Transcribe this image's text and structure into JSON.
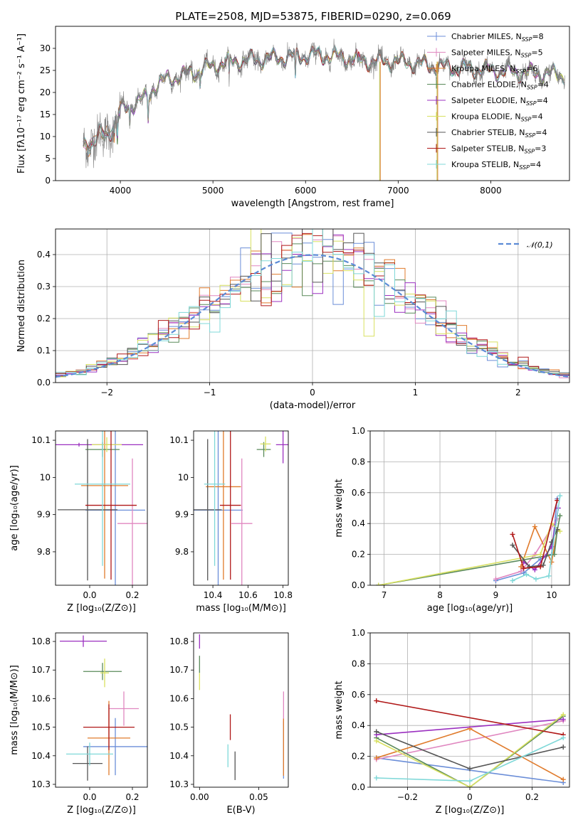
{
  "title": "PLATE=2508, MJD=53875, FIBERID=0290, z=0.069",
  "models": [
    {
      "name": "Chabrier MILES",
      "nssp": "8",
      "color": "#6b8ed8"
    },
    {
      "name": "Salpeter MILES",
      "nssp": "5",
      "color": "#e087c0"
    },
    {
      "name": "Kroupa MILES",
      "nssp": "6",
      "color": "#e07b2c"
    },
    {
      "name": "Chabrier ELODIE",
      "nssp": "4",
      "color": "#5a8a5a"
    },
    {
      "name": "Salpeter ELODIE",
      "nssp": "4",
      "color": "#9b30c0"
    },
    {
      "name": "Kroupa ELODIE",
      "nssp": "4",
      "color": "#d8e060"
    },
    {
      "name": "Chabrier STELIB",
      "nssp": "4",
      "color": "#555555"
    },
    {
      "name": "Salpeter STELIB",
      "nssp": "3",
      "color": "#b01818"
    },
    {
      "name": "Kroupa STELIB",
      "nssp": "4",
      "color": "#7fd8d8"
    }
  ],
  "chart_data": [
    {
      "id": "spectrum",
      "type": "line",
      "xlabel": "wavelength [Angstrom, rest frame]",
      "ylabel": "Flux [fλ10⁻¹⁷ erg cm⁻² s⁻¹ A⁻¹]",
      "xlim": [
        3300,
        8850
      ],
      "ylim": [
        0,
        35
      ],
      "xticks": [
        4000,
        5000,
        6000,
        7000,
        8000
      ],
      "yticks": [
        0,
        5,
        10,
        15,
        20,
        25,
        30
      ],
      "continuum": [
        [
          3600,
          8
        ],
        [
          3700,
          9
        ],
        [
          3800,
          10
        ],
        [
          3900,
          12
        ],
        [
          3950,
          13
        ],
        [
          4000,
          16
        ],
        [
          4100,
          17
        ],
        [
          4200,
          18
        ],
        [
          4300,
          19
        ],
        [
          4350,
          21
        ],
        [
          4500,
          23
        ],
        [
          4700,
          24
        ],
        [
          4850,
          25
        ],
        [
          5000,
          26
        ],
        [
          5200,
          27
        ],
        [
          5500,
          27.5
        ],
        [
          5800,
          28
        ],
        [
          6100,
          28.5
        ],
        [
          6400,
          28
        ],
        [
          6700,
          27
        ],
        [
          7000,
          27
        ],
        [
          7200,
          26.5
        ],
        [
          7400,
          26
        ],
        [
          7700,
          25.5
        ],
        [
          8000,
          25
        ],
        [
          8300,
          24.5
        ],
        [
          8800,
          24
        ]
      ],
      "absorption": [
        [
          3933,
          3
        ],
        [
          3968,
          5
        ],
        [
          4102,
          4
        ],
        [
          4300,
          5
        ],
        [
          4861,
          3
        ],
        [
          5175,
          4
        ],
        [
          5890,
          6
        ],
        [
          6563,
          2
        ]
      ],
      "masked_lines": [
        6800,
        7420
      ],
      "legend": "upper right"
    },
    {
      "id": "residuals",
      "type": "step",
      "xlabel": "(data-model)/error",
      "ylabel": "Normed distribution",
      "xlim": [
        -2.5,
        2.5
      ],
      "ylim": [
        0,
        0.48
      ],
      "xticks": [
        -2,
        -1,
        0,
        1,
        2
      ],
      "yticks": [
        0.0,
        0.1,
        0.2,
        0.3,
        0.4
      ],
      "bin_width": 0.1,
      "reference_curve": {
        "label": "𝒩(0,1)",
        "mean": 0,
        "sigma": 1
      },
      "grid": true,
      "legend": "upper right"
    },
    {
      "id": "age-vs-Z",
      "type": "errorbar",
      "xlabel": "Z [log₁₀(Z/Z⊙)]",
      "ylabel": "age  [log₁₀(age/yr)]",
      "xlim": [
        -0.16,
        0.27
      ],
      "ylim": [
        9.71,
        10.125
      ],
      "xticks": [
        0.0,
        0.2
      ],
      "yticks": [
        9.8,
        9.9,
        10.0,
        10.1
      ],
      "points": [
        {
          "x": 0.12,
          "y": 9.912,
          "xerr": 0.14,
          "yerr": 0.24
        },
        {
          "x": 0.2,
          "y": 9.876,
          "xerr": 0.07,
          "yerr": 0.175
        },
        {
          "x": 0.07,
          "y": 9.978,
          "xerr": 0.11,
          "yerr": 0.25
        },
        {
          "x": 0.06,
          "y": 10.075,
          "xerr": 0.08,
          "yerr": 0.02
        },
        {
          "x": -0.05,
          "y": 10.088,
          "xerr": 0.3,
          "yerr": 0.005
        },
        {
          "x": 0.08,
          "y": 10.088,
          "xerr": 0.07,
          "yerr": 0.02
        },
        {
          "x": -0.01,
          "y": 9.913,
          "xerr": 0.14,
          "yerr": 0.19
        },
        {
          "x": 0.1,
          "y": 9.925,
          "xerr": 0.12,
          "yerr": 0.2
        },
        {
          "x": 0.06,
          "y": 9.982,
          "xerr": 0.13,
          "yerr": 0.22
        }
      ]
    },
    {
      "id": "age-vs-mass",
      "type": "errorbar",
      "xlabel": "mass [log₁₀(M/M⊙)]",
      "ylabel": "",
      "xlim": [
        10.29,
        10.83
      ],
      "ylim": [
        9.71,
        10.125
      ],
      "xticks": [
        10.4,
        10.6,
        10.8
      ],
      "yticks": [
        9.8,
        9.9,
        10.0,
        10.1
      ],
      "points": [
        {
          "x": 10.43,
          "y": 9.912,
          "xerr": 0.14,
          "yerr": 0.24
        },
        {
          "x": 10.565,
          "y": 9.876,
          "xerr": 0.06,
          "yerr": 0.175
        },
        {
          "x": 10.46,
          "y": 9.975,
          "xerr": 0.1,
          "yerr": 0.25
        },
        {
          "x": 10.69,
          "y": 10.075,
          "xerr": 0.04,
          "yerr": 0.02
        },
        {
          "x": 10.8,
          "y": 10.088,
          "xerr": 0.04,
          "yerr": 0.05
        },
        {
          "x": 10.7,
          "y": 10.09,
          "xerr": 0.03,
          "yerr": 0.02
        },
        {
          "x": 10.37,
          "y": 9.913,
          "xerr": 0.08,
          "yerr": 0.19
        },
        {
          "x": 10.5,
          "y": 9.925,
          "xerr": 0.06,
          "yerr": 0.2
        },
        {
          "x": 10.41,
          "y": 9.982,
          "xerr": 0.06,
          "yerr": 0.22
        }
      ]
    },
    {
      "id": "weight-vs-age",
      "type": "line",
      "xlabel": "age  [log₁₀(age/yr)]",
      "ylabel": "mass weight",
      "xlim": [
        6.75,
        10.32
      ],
      "ylim": [
        0,
        1.0
      ],
      "xticks": [
        7,
        8,
        9,
        10
      ],
      "yticks": [
        0.0,
        0.2,
        0.4,
        0.6,
        0.8,
        1.0
      ],
      "grid": true,
      "series": [
        {
          "x": [
            9.0,
            9.5,
            9.8,
            10.0,
            10.1
          ],
          "y": [
            0.03,
            0.08,
            0.17,
            0.2,
            0.56
          ]
        },
        {
          "x": [
            9.0,
            9.45,
            9.7,
            10.1
          ],
          "y": [
            0.04,
            0.09,
            0.2,
            0.43
          ]
        },
        {
          "x": [
            9.45,
            9.7,
            10.0,
            10.1
          ],
          "y": [
            0.12,
            0.38,
            0.15,
            0.35
          ]
        },
        {
          "x": [
            6.9,
            10.05,
            10.1,
            10.15
          ],
          "y": [
            0.0,
            0.2,
            0.35,
            0.45
          ]
        },
        {
          "x": [
            9.5,
            9.7,
            10.0,
            10.12
          ],
          "y": [
            0.15,
            0.1,
            0.25,
            0.5
          ]
        },
        {
          "x": [
            6.9,
            9.8,
            10.0,
            10.15
          ],
          "y": [
            0.0,
            0.2,
            0.4,
            0.35
          ]
        },
        {
          "x": [
            9.3,
            9.6,
            9.85,
            10.0,
            10.1
          ],
          "y": [
            0.26,
            0.12,
            0.13,
            0.28,
            0.36
          ]
        },
        {
          "x": [
            9.3,
            9.5,
            9.8,
            10.1
          ],
          "y": [
            0.33,
            0.11,
            0.12,
            0.55
          ]
        },
        {
          "x": [
            9.3,
            9.55,
            9.72,
            9.95,
            10.15
          ],
          "y": [
            0.03,
            0.07,
            0.04,
            0.06,
            0.58
          ]
        }
      ]
    },
    {
      "id": "mass-vs-Z",
      "type": "errorbar",
      "xlabel": "Z [log₁₀(Z/Z⊙)]",
      "ylabel": "mass [log₁₀(M/M⊙)]",
      "xlim": [
        -0.16,
        0.27
      ],
      "ylim": [
        10.29,
        10.83
      ],
      "xticks": [
        0.0,
        0.2
      ],
      "yticks": [
        10.3,
        10.4,
        10.5,
        10.6,
        10.7,
        10.8
      ],
      "points": [
        {
          "x": 0.12,
          "y": 10.432,
          "xerr": 0.15,
          "yerr": 0.1
        },
        {
          "x": 0.16,
          "y": 10.565,
          "xerr": 0.07,
          "yerr": 0.06
        },
        {
          "x": 0.09,
          "y": 10.462,
          "xerr": 0.1,
          "yerr": 0.13
        },
        {
          "x": 0.06,
          "y": 10.695,
          "xerr": 0.09,
          "yerr": 0.03
        },
        {
          "x": -0.03,
          "y": 10.801,
          "xerr": 0.11,
          "yerr": 0.02
        },
        {
          "x": 0.07,
          "y": 10.69,
          "xerr": 0.02,
          "yerr": 0.05
        },
        {
          "x": -0.01,
          "y": 10.373,
          "xerr": 0.07,
          "yerr": 0.06
        },
        {
          "x": 0.09,
          "y": 10.5,
          "xerr": 0.12,
          "yerr": 0.08
        },
        {
          "x": 0.0,
          "y": 10.406,
          "xerr": 0.11,
          "yerr": 0.04
        }
      ]
    },
    {
      "id": "mass-vs-EBV",
      "type": "errorbar",
      "xlabel": "E(B-V)",
      "ylabel": "",
      "xlim": [
        -0.005,
        0.075
      ],
      "ylim": [
        10.29,
        10.83
      ],
      "xticks": [
        0.0,
        0.05
      ],
      "yticks": [
        10.3,
        10.4,
        10.5,
        10.6,
        10.7,
        10.8
      ],
      "points": [
        {
          "x": 0.071,
          "y": 10.42,
          "xerr": 0,
          "yerr": 0.1
        },
        {
          "x": 0.071,
          "y": 10.565,
          "xerr": 0,
          "yerr": 0.06
        },
        {
          "x": 0.071,
          "y": 10.43,
          "xerr": 0,
          "yerr": 0.1
        },
        {
          "x": 0.0,
          "y": 10.72,
          "xerr": 0,
          "yerr": 0.03
        },
        {
          "x": 0.0,
          "y": 10.8,
          "xerr": 0,
          "yerr": 0.025
        },
        {
          "x": 0.0,
          "y": 10.66,
          "xerr": 0,
          "yerr": 0.03
        },
        {
          "x": 0.03,
          "y": 10.365,
          "xerr": 0,
          "yerr": 0.05
        },
        {
          "x": 0.026,
          "y": 10.5,
          "xerr": 0,
          "yerr": 0.045
        },
        {
          "x": 0.024,
          "y": 10.4,
          "xerr": 0,
          "yerr": 0.04
        }
      ]
    },
    {
      "id": "weight-vs-Z",
      "type": "line",
      "xlabel": "Z [log₁₀(Z/Z⊙)]",
      "ylabel": "mass weight",
      "xlim": [
        -0.32,
        0.32
      ],
      "ylim": [
        0,
        1.0
      ],
      "xticks": [
        -0.2,
        0.0,
        0.2
      ],
      "yticks": [
        0.0,
        0.2,
        0.4,
        0.6,
        0.8,
        1.0
      ],
      "grid": true,
      "series": [
        {
          "x": [
            -0.3,
            0.3
          ],
          "y": [
            0.19,
            0.03
          ]
        },
        {
          "x": [
            -0.3,
            0.3
          ],
          "y": [
            0.18,
            0.43
          ]
        },
        {
          "x": [
            -0.3,
            0.0,
            0.3
          ],
          "y": [
            0.19,
            0.38,
            0.05
          ]
        },
        {
          "x": [
            -0.3,
            0.0,
            0.3
          ],
          "y": [
            0.32,
            0.0,
            0.46
          ]
        },
        {
          "x": [
            -0.3,
            0.3
          ],
          "y": [
            0.34,
            0.44
          ]
        },
        {
          "x": [
            -0.3,
            0.0,
            0.3
          ],
          "y": [
            0.3,
            0.0,
            0.47
          ]
        },
        {
          "x": [
            -0.3,
            0.0,
            0.3
          ],
          "y": [
            0.36,
            0.12,
            0.26
          ]
        },
        {
          "x": [
            -0.3,
            0.3
          ],
          "y": [
            0.56,
            0.34
          ]
        },
        {
          "x": [
            -0.3,
            0.0,
            0.3
          ],
          "y": [
            0.06,
            0.04,
            0.32
          ]
        }
      ]
    }
  ]
}
